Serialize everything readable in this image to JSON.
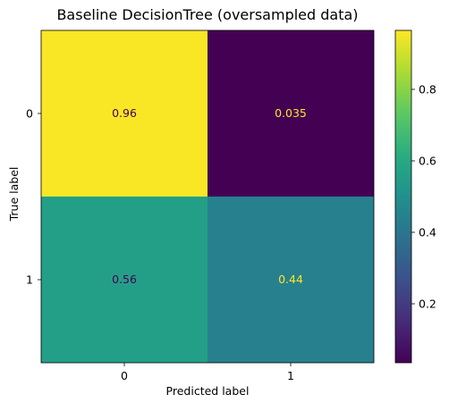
{
  "chart_data": {
    "type": "heatmap",
    "title": "Baseline DecisionTree (oversampled data)",
    "xlabel": "Predicted label",
    "ylabel": "True label",
    "x_categories": [
      "0",
      "1"
    ],
    "y_categories": [
      "0",
      "1"
    ],
    "values": [
      [
        0.96,
        0.035
      ],
      [
        0.56,
        0.44
      ]
    ],
    "value_labels": [
      [
        "0.96",
        "0.035"
      ],
      [
        "0.56",
        "0.44"
      ]
    ],
    "colormap": "viridis",
    "colorbar": {
      "range": [
        0.035,
        0.965
      ],
      "ticks": [
        0.2,
        0.4,
        0.6,
        0.8
      ],
      "tick_labels": [
        "0.2",
        "0.4",
        "0.6",
        "0.8"
      ]
    },
    "grid": false
  }
}
